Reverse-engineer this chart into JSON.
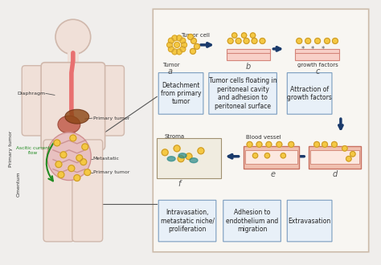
{
  "bg_color": "#f0eeec",
  "panel_bg": "#f5f3f0",
  "box_bg": "#e8f0f8",
  "box_border": "#7a9cbf",
  "arrow_color": "#1a3a6b",
  "title": "",
  "labels_top_row": [
    "Detachment\nfrom primary\ntumor",
    "Tumor cells floating in\nperitoneal cavity\nand adhesion to\nperitoneal surface",
    "Attraction of\ngrowth factors"
  ],
  "labels_bottom_row": [
    "Intravasation,\nmetastatic niche/\nproliferation",
    "Adhesion to\nendothelium and\nmigration",
    "Extravasation"
  ],
  "step_labels_top": [
    "a",
    "b",
    "c"
  ],
  "step_labels_bottom": [
    "f",
    "e",
    "d"
  ],
  "tumor_label": "Tumor",
  "tumor_cell_label": "Tumor cell",
  "growth_factors_label": "growth factors",
  "stroma_label": "Stroma",
  "blood_vessel_label": "Blood vessel",
  "body_labels": [
    "Diaphragm",
    "Primary tumor",
    "Ascitic current\nflow",
    "Metastatic",
    "Primary tumor",
    "Primary tumor",
    "Omentum"
  ],
  "body_label_colors": [
    "#333333",
    "#333333",
    "#228B22",
    "#333333",
    "#333333",
    "#333333",
    "#333333"
  ]
}
